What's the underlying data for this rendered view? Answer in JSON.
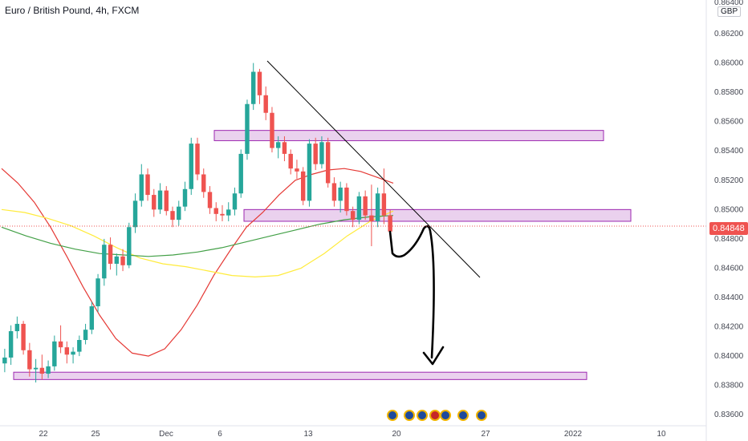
{
  "header": {
    "title": "Euro / British Pound, 4h, FXCM"
  },
  "price_axis": {
    "currency": "GBP",
    "top_label": "0.86400",
    "current_price_label": "0.84848"
  },
  "colors": {
    "up_candle": "#26a69a",
    "down_candle": "#ef5350",
    "zone_fill": "#e1bee7",
    "zone_stroke": "#9c27b0",
    "ma_red": "#e53935",
    "ma_yellow": "#ffeb3b",
    "ma_green": "#43a047",
    "price_label_bg": "#ef5350"
  },
  "event_icons": [
    "flag-eu-icon",
    "flag-eu-icon",
    "flag-eu-icon",
    "flag-uk-icon",
    "flag-eu-icon",
    "flag-eu-icon",
    "flag-eu-icon"
  ],
  "chart_data": {
    "type": "candlestick",
    "title": "Euro / British Pound, 4h, FXCM",
    "y_unit": "GBP",
    "ylim": [
      0.8353,
      0.8643
    ],
    "y_ticks": [
      "0.83600",
      "0.83800",
      "0.84000",
      "0.84200",
      "0.84400",
      "0.84600",
      "0.84800",
      "0.85000",
      "0.85200",
      "0.85400",
      "0.85600",
      "0.85800",
      "0.86000",
      "0.86200"
    ],
    "x_ticks": [
      "22",
      "25",
      "Dec",
      "6",
      "13",
      "20",
      "27",
      "2022",
      "10"
    ],
    "current_price": 0.84848,
    "zones": [
      {
        "low": 0.8547,
        "high": 0.8554
      },
      {
        "low": 0.8492,
        "high": 0.85
      },
      {
        "low": 0.8384,
        "high": 0.8389
      }
    ],
    "series": [
      {
        "kind": "ohlc",
        "values": [
          [
            0.8395,
            0.8405,
            0.8389,
            0.8399
          ],
          [
            0.8399,
            0.8421,
            0.8394,
            0.8417
          ],
          [
            0.8417,
            0.8427,
            0.8412,
            0.8422
          ],
          [
            0.8422,
            0.8424,
            0.8401,
            0.8404
          ],
          [
            0.8404,
            0.8409,
            0.8386,
            0.8391
          ],
          [
            0.8391,
            0.8398,
            0.8382,
            0.8392
          ],
          [
            0.8392,
            0.8401,
            0.8384,
            0.8388
          ],
          [
            0.8388,
            0.8397,
            0.8385,
            0.8393
          ],
          [
            0.8393,
            0.8414,
            0.839,
            0.841
          ],
          [
            0.841,
            0.8421,
            0.8402,
            0.8406
          ],
          [
            0.8406,
            0.841,
            0.8395,
            0.8401
          ],
          [
            0.8401,
            0.8406,
            0.8395,
            0.8403
          ],
          [
            0.8403,
            0.8414,
            0.84,
            0.8411
          ],
          [
            0.8411,
            0.8422,
            0.8408,
            0.8418
          ],
          [
            0.8418,
            0.8437,
            0.8415,
            0.8434
          ],
          [
            0.8434,
            0.8456,
            0.843,
            0.8453
          ],
          [
            0.8453,
            0.848,
            0.8448,
            0.8476
          ],
          [
            0.8476,
            0.8481,
            0.8459,
            0.8463
          ],
          [
            0.8463,
            0.847,
            0.8455,
            0.8468
          ],
          [
            0.8468,
            0.8473,
            0.8458,
            0.8462
          ],
          [
            0.8462,
            0.8491,
            0.846,
            0.8488
          ],
          [
            0.8488,
            0.8511,
            0.8484,
            0.8506
          ],
          [
            0.8506,
            0.8531,
            0.8502,
            0.8524
          ],
          [
            0.8524,
            0.8528,
            0.8506,
            0.851
          ],
          [
            0.851,
            0.8514,
            0.8495,
            0.85
          ],
          [
            0.85,
            0.8518,
            0.8497,
            0.8513
          ],
          [
            0.8513,
            0.8516,
            0.8496,
            0.8499
          ],
          [
            0.8499,
            0.8502,
            0.8488,
            0.8493
          ],
          [
            0.8493,
            0.8506,
            0.8489,
            0.8502
          ],
          [
            0.8502,
            0.8519,
            0.8499,
            0.8514
          ],
          [
            0.8514,
            0.8549,
            0.851,
            0.8545
          ],
          [
            0.8545,
            0.8549,
            0.852,
            0.8524
          ],
          [
            0.8524,
            0.8528,
            0.8508,
            0.8512
          ],
          [
            0.8512,
            0.8516,
            0.8497,
            0.8501
          ],
          [
            0.8501,
            0.8505,
            0.8492,
            0.8497
          ],
          [
            0.8497,
            0.8503,
            0.8492,
            0.8496
          ],
          [
            0.8496,
            0.8505,
            0.8492,
            0.85
          ],
          [
            0.85,
            0.8515,
            0.8496,
            0.8511
          ],
          [
            0.8511,
            0.8541,
            0.8508,
            0.8538
          ],
          [
            0.8538,
            0.8575,
            0.8534,
            0.8572
          ],
          [
            0.8572,
            0.86,
            0.8568,
            0.8594
          ],
          [
            0.8594,
            0.8596,
            0.8572,
            0.8578
          ],
          [
            0.8578,
            0.8584,
            0.8561,
            0.8566
          ],
          [
            0.8566,
            0.857,
            0.8539,
            0.8542
          ],
          [
            0.8542,
            0.855,
            0.8535,
            0.8546
          ],
          [
            0.8546,
            0.855,
            0.8533,
            0.8538
          ],
          [
            0.8538,
            0.8541,
            0.8524,
            0.8528
          ],
          [
            0.8528,
            0.8534,
            0.8521,
            0.8526
          ],
          [
            0.8526,
            0.8529,
            0.8503,
            0.8506
          ],
          [
            0.8506,
            0.8548,
            0.8502,
            0.8545
          ],
          [
            0.8545,
            0.8549,
            0.8527,
            0.8531
          ],
          [
            0.8531,
            0.855,
            0.8528,
            0.8546
          ],
          [
            0.8546,
            0.8549,
            0.8515,
            0.8518
          ],
          [
            0.8518,
            0.8522,
            0.8502,
            0.8506
          ],
          [
            0.8506,
            0.8519,
            0.8498,
            0.8515
          ],
          [
            0.8515,
            0.8518,
            0.8496,
            0.8499
          ],
          [
            0.8499,
            0.8502,
            0.8488,
            0.8493
          ],
          [
            0.8493,
            0.8512,
            0.849,
            0.8509
          ],
          [
            0.8509,
            0.8513,
            0.8493,
            0.8496
          ],
          [
            0.8496,
            0.8517,
            0.8475,
            0.8492
          ],
          [
            0.8492,
            0.8515,
            0.8488,
            0.8511
          ],
          [
            0.8511,
            0.8528,
            0.849,
            0.8496
          ],
          [
            0.8496,
            0.85,
            0.8484,
            0.8485
          ]
        ]
      },
      {
        "kind": "moving-average",
        "color": "red",
        "values": [
          0.8528,
          0.8518,
          0.8505,
          0.8488,
          0.8468,
          0.8447,
          0.8428,
          0.8412,
          0.8402,
          0.84,
          0.8405,
          0.8418,
          0.8435,
          0.8455,
          0.8472,
          0.8488,
          0.8498,
          0.851,
          0.852,
          0.8524,
          0.8527,
          0.8528,
          0.8526,
          0.8522,
          0.8518
        ]
      },
      {
        "kind": "moving-average",
        "color": "yellow",
        "values": [
          0.85,
          0.8498,
          0.8494,
          0.8489,
          0.8482,
          0.8474,
          0.8467,
          0.8463,
          0.8461,
          0.8458,
          0.8455,
          0.8454,
          0.8455,
          0.846,
          0.847,
          0.8482,
          0.8492,
          0.8499
        ]
      },
      {
        "kind": "moving-average",
        "color": "green",
        "values": [
          0.8488,
          0.8482,
          0.8477,
          0.8473,
          0.847,
          0.8469,
          0.8468,
          0.8469,
          0.8471,
          0.8474,
          0.8478,
          0.8482,
          0.8486,
          0.849,
          0.8493,
          0.8495,
          0.8496
        ]
      }
    ]
  }
}
